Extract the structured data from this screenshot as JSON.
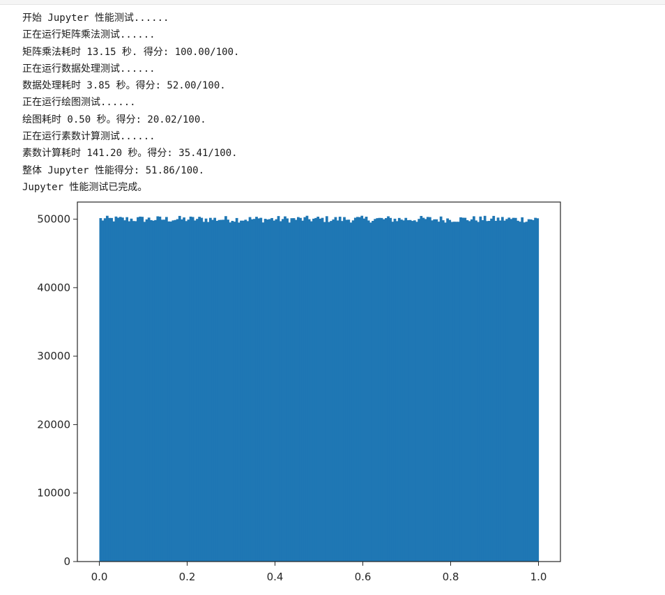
{
  "output": {
    "lines": [
      "开始 Jupyter 性能测试......",
      "正在运行矩阵乘法测试......",
      "矩阵乘法耗时 13.15 秒. 得分: 100.00/100.",
      "正在运行数据处理测试......",
      "数据处理耗时 3.85 秒。得分: 52.00/100.",
      "正在运行绘图测试......",
      "绘图耗时 0.50 秒。得分: 20.02/100.",
      "正在运行素数计算测试......",
      "素数计算耗时 141.20 秒。得分: 35.41/100.",
      "整体 Jupyter 性能得分: 51.86/100.",
      "Jupyter 性能测试已完成。"
    ]
  },
  "colors": {
    "bar": "#1f77b4",
    "axis": "#262626",
    "text": "#1a1a1a"
  },
  "chart_data": {
    "type": "bar",
    "title": "",
    "xlabel": "",
    "ylabel": "",
    "bins": 200,
    "x_range": [
      0.0,
      1.0
    ],
    "xlim": [
      -0.05,
      1.05
    ],
    "ylim": [
      0,
      52500
    ],
    "xticks": [
      0.0,
      0.2,
      0.4,
      0.6,
      0.8,
      1.0
    ],
    "xtick_labels": [
      "0.0",
      "0.2",
      "0.4",
      "0.6",
      "0.8",
      "1.0"
    ],
    "yticks": [
      0,
      10000,
      20000,
      30000,
      40000,
      50000
    ],
    "ytick_labels": [
      "0",
      "10000",
      "20000",
      "30000",
      "40000",
      "50000"
    ],
    "grid": false,
    "approx_bin_count": 50000,
    "approx_bin_min": 49500,
    "approx_bin_max": 50500
  }
}
